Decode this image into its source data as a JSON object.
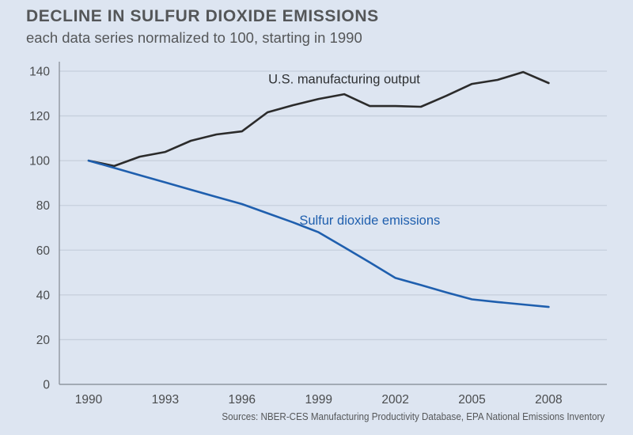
{
  "header": {
    "title": "DECLINE IN SULFUR DIOXIDE EMISSIONS",
    "subtitle": "each data series normalized to 100, starting in 1990"
  },
  "footer": {
    "source": "Sources: NBER-CES Manufacturing Productivity Database, EPA National Emissions Inventory"
  },
  "chart_data": {
    "type": "line",
    "title": "DECLINE IN SULFUR DIOXIDE EMISSIONS",
    "subtitle": "each data series normalized to 100, starting in 1990",
    "xlabel": "",
    "ylabel": "",
    "x": [
      1990,
      1991,
      1992,
      1993,
      1994,
      1995,
      1996,
      1997,
      1998,
      1999,
      2000,
      2001,
      2002,
      2003,
      2004,
      2005,
      2006,
      2007,
      2008
    ],
    "xlim": [
      1989,
      2010
    ],
    "ylim": [
      0,
      140
    ],
    "x_ticks": [
      1990,
      1993,
      1996,
      1999,
      2002,
      2005,
      2008
    ],
    "x_tick_labels": [
      "1990",
      "1993",
      "1996",
      "1999",
      "2002",
      "2005",
      "2008"
    ],
    "y_ticks": [
      0,
      20,
      40,
      60,
      80,
      100,
      120,
      140
    ],
    "y_tick_labels": [
      "0",
      "20",
      "40",
      "60",
      "80",
      "100",
      "120",
      "140"
    ],
    "grid": "horizontal",
    "legend": "direct-labels",
    "series": [
      {
        "name": "U.S. manufacturing output",
        "color": "#2b2b2b",
        "label_anchor_year": 2000,
        "label_anchor_value": 134.5,
        "values": [
          100,
          97.6,
          101.8,
          103.9,
          108.9,
          111.7,
          113.1,
          121.6,
          124.8,
          127.6,
          129.7,
          124.4,
          124.4,
          124.1,
          129.0,
          134.3,
          136.1,
          139.6,
          134.7
        ]
      },
      {
        "name": "Sulfur dioxide emissions",
        "color": "#1f5fae",
        "label_anchor_year": 2001,
        "label_anchor_value": 71.5,
        "values": [
          100,
          96.8,
          93.5,
          90.3,
          87.0,
          83.8,
          80.6,
          76.5,
          72.4,
          68.0,
          61.3,
          54.5,
          47.6,
          44.4,
          41.1,
          38.0,
          36.8,
          35.7,
          34.6
        ]
      }
    ]
  }
}
